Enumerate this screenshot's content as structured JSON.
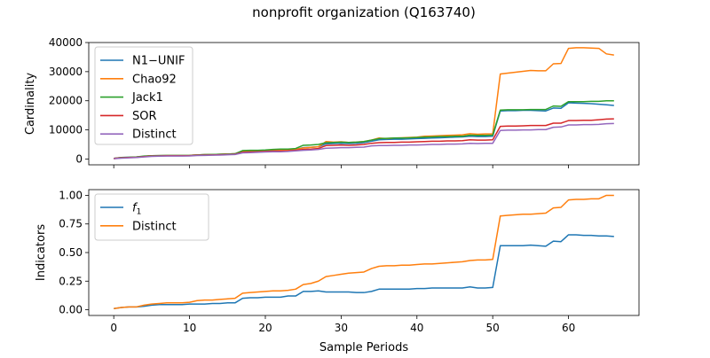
{
  "figure": {
    "title": "nonprofit organization (Q163740)",
    "xlabel": "Sample Periods"
  },
  "colors": {
    "blue": "#1f77b4",
    "orange": "#ff7f0e",
    "green": "#2ca02c",
    "red": "#d62728",
    "purple": "#9467bd"
  },
  "chart_data": [
    {
      "type": "line",
      "title": "",
      "ylabel": "Cardinality",
      "xlabel": "",
      "xlim": [
        -3.3,
        69.3
      ],
      "ylim": [
        -2000,
        40000
      ],
      "xticks": [
        0,
        10,
        20,
        30,
        40,
        50,
        60
      ],
      "yticks": [
        0,
        10000,
        20000,
        30000,
        40000
      ],
      "ytick_labels": [
        "0",
        "10000",
        "20000",
        "30000",
        "40000"
      ],
      "legend": "upper-left",
      "x": [
        0,
        1,
        2,
        3,
        4,
        5,
        6,
        7,
        8,
        9,
        10,
        11,
        12,
        13,
        14,
        15,
        16,
        17,
        18,
        19,
        20,
        21,
        22,
        23,
        24,
        25,
        26,
        27,
        28,
        29,
        30,
        31,
        32,
        33,
        34,
        35,
        36,
        37,
        38,
        39,
        40,
        41,
        42,
        43,
        44,
        45,
        46,
        47,
        48,
        49,
        50,
        51,
        52,
        53,
        54,
        55,
        56,
        57,
        58,
        59,
        60,
        61,
        62,
        63,
        64,
        65,
        66
      ],
      "series": [
        {
          "name": "N1−UNIF",
          "color": "#1f77b4",
          "values": [
            200,
            500,
            600,
            700,
            900,
            1100,
            1150,
            1200,
            1200,
            1200,
            1250,
            1400,
            1500,
            1550,
            1600,
            1700,
            1800,
            2600,
            2700,
            2800,
            2900,
            3000,
            3000,
            3100,
            3300,
            3900,
            4000,
            4200,
            5200,
            5300,
            5400,
            5300,
            5400,
            5600,
            6100,
            6600,
            6700,
            6800,
            6800,
            6900,
            7000,
            7100,
            7200,
            7300,
            7400,
            7500,
            7600,
            7800,
            7700,
            7700,
            7800,
            16500,
            16600,
            16600,
            16700,
            16700,
            16600,
            16500,
            17500,
            17400,
            19300,
            19200,
            19100,
            19000,
            18800,
            18600,
            18400
          ]
        },
        {
          "name": "Chao92",
          "color": "#ff7f0e",
          "values": [
            100,
            400,
            500,
            600,
            900,
            1100,
            1150,
            1200,
            1200,
            1200,
            1250,
            1400,
            1500,
            1550,
            1600,
            1700,
            1800,
            2500,
            2600,
            2700,
            2900,
            3000,
            3000,
            3100,
            3300,
            3800,
            4000,
            4200,
            6000,
            5800,
            5900,
            5700,
            5800,
            6000,
            6500,
            7200,
            7000,
            7200,
            7300,
            7400,
            7500,
            7800,
            7900,
            8000,
            8100,
            8200,
            8300,
            8700,
            8500,
            8600,
            8600,
            29200,
            29500,
            29800,
            30100,
            30400,
            30300,
            30300,
            32700,
            32800,
            38000,
            38200,
            38200,
            38100,
            38000,
            36100,
            35700
          ]
        },
        {
          "name": "Jack1",
          "color": "#2ca02c",
          "values": [
            200,
            500,
            600,
            700,
            1000,
            1100,
            1150,
            1200,
            1200,
            1200,
            1250,
            1400,
            1500,
            1550,
            1600,
            1700,
            1800,
            2900,
            3000,
            3000,
            3100,
            3300,
            3400,
            3400,
            3600,
            4700,
            4800,
            5000,
            5600,
            5700,
            5800,
            5700,
            5800,
            6000,
            6500,
            7000,
            7100,
            7200,
            7200,
            7300,
            7400,
            7500,
            7600,
            7700,
            7700,
            7800,
            7800,
            8200,
            8100,
            8100,
            8200,
            16800,
            16900,
            16900,
            16900,
            17000,
            17000,
            17000,
            18200,
            18100,
            19700,
            19700,
            19700,
            19800,
            19800,
            20000,
            20000
          ]
        },
        {
          "name": "SOR",
          "color": "#d62728",
          "values": [
            200,
            400,
            500,
            600,
            800,
            1000,
            1050,
            1100,
            1100,
            1100,
            1150,
            1300,
            1350,
            1400,
            1450,
            1550,
            1650,
            2300,
            2400,
            2500,
            2600,
            2700,
            2700,
            2800,
            3000,
            3300,
            3400,
            3600,
            4600,
            4700,
            4800,
            4700,
            4800,
            5000,
            5400,
            5600,
            5700,
            5700,
            5800,
            5800,
            5900,
            6000,
            6100,
            6100,
            6200,
            6200,
            6300,
            6600,
            6500,
            6500,
            6600,
            11200,
            11300,
            11300,
            11400,
            11500,
            11500,
            11500,
            12300,
            12300,
            13200,
            13200,
            13300,
            13300,
            13500,
            13700,
            13800
          ]
        },
        {
          "name": "Distinct",
          "color": "#9467bd",
          "values": [
            100,
            300,
            400,
            500,
            700,
            900,
            950,
            1000,
            1000,
            1000,
            1050,
            1200,
            1250,
            1300,
            1350,
            1450,
            1550,
            2100,
            2200,
            2300,
            2400,
            2500,
            2500,
            2600,
            2800,
            3000,
            3100,
            3300,
            3700,
            3800,
            3900,
            3900,
            4000,
            4100,
            4500,
            4600,
            4600,
            4700,
            4700,
            4800,
            4800,
            4900,
            5000,
            5000,
            5100,
            5100,
            5200,
            5400,
            5300,
            5400,
            5400,
            9800,
            9900,
            9900,
            10000,
            10000,
            10100,
            10100,
            10900,
            11000,
            11700,
            11700,
            11800,
            11800,
            11900,
            12100,
            12200
          ]
        }
      ]
    },
    {
      "type": "line",
      "title": "",
      "ylabel": "Indicators",
      "xlabel": "Sample Periods",
      "xlim": [
        -3.3,
        69.3
      ],
      "ylim": [
        -0.05,
        1.05
      ],
      "xticks": [
        0,
        10,
        20,
        30,
        40,
        50,
        60
      ],
      "yticks": [
        0.0,
        0.25,
        0.5,
        0.75,
        1.0
      ],
      "ytick_labels": [
        "0.00",
        "0.25",
        "0.50",
        "0.75",
        "1.00"
      ],
      "legend": "upper-left",
      "x": [
        0,
        1,
        2,
        3,
        4,
        5,
        6,
        7,
        8,
        9,
        10,
        11,
        12,
        13,
        14,
        15,
        16,
        17,
        18,
        19,
        20,
        21,
        22,
        23,
        24,
        25,
        26,
        27,
        28,
        29,
        30,
        31,
        32,
        33,
        34,
        35,
        36,
        37,
        38,
        39,
        40,
        41,
        42,
        43,
        44,
        45,
        46,
        47,
        48,
        49,
        50,
        51,
        52,
        53,
        54,
        55,
        56,
        57,
        58,
        59,
        60,
        61,
        62,
        63,
        64,
        65,
        66
      ],
      "series": [
        {
          "name": "f",
          "sub": "1",
          "color": "#1f77b4",
          "values": [
            0.01,
            0.02,
            0.025,
            0.025,
            0.03,
            0.04,
            0.045,
            0.045,
            0.045,
            0.045,
            0.05,
            0.05,
            0.05,
            0.055,
            0.055,
            0.06,
            0.06,
            0.1,
            0.105,
            0.105,
            0.11,
            0.11,
            0.11,
            0.12,
            0.12,
            0.16,
            0.16,
            0.165,
            0.155,
            0.155,
            0.155,
            0.155,
            0.15,
            0.15,
            0.16,
            0.18,
            0.18,
            0.18,
            0.18,
            0.18,
            0.185,
            0.185,
            0.19,
            0.19,
            0.19,
            0.19,
            0.19,
            0.2,
            0.19,
            0.19,
            0.195,
            0.56,
            0.56,
            0.56,
            0.56,
            0.565,
            0.56,
            0.555,
            0.6,
            0.595,
            0.655,
            0.655,
            0.65,
            0.65,
            0.645,
            0.645,
            0.64
          ]
        },
        {
          "name": "Distinct",
          "color": "#ff7f0e",
          "values": [
            0.01,
            0.02,
            0.025,
            0.025,
            0.04,
            0.05,
            0.055,
            0.06,
            0.06,
            0.06,
            0.065,
            0.08,
            0.085,
            0.085,
            0.09,
            0.095,
            0.1,
            0.145,
            0.15,
            0.155,
            0.16,
            0.165,
            0.165,
            0.17,
            0.18,
            0.22,
            0.23,
            0.25,
            0.29,
            0.3,
            0.31,
            0.32,
            0.325,
            0.33,
            0.36,
            0.38,
            0.385,
            0.385,
            0.39,
            0.39,
            0.395,
            0.4,
            0.4,
            0.405,
            0.41,
            0.415,
            0.42,
            0.43,
            0.435,
            0.435,
            0.44,
            0.82,
            0.825,
            0.83,
            0.835,
            0.835,
            0.84,
            0.845,
            0.89,
            0.895,
            0.96,
            0.965,
            0.965,
            0.97,
            0.97,
            1.0,
            1.0
          ]
        }
      ]
    }
  ]
}
